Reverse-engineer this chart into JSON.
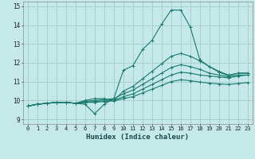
{
  "xlabel": "Humidex (Indice chaleur)",
  "background_color": "#c5e8e8",
  "grid_color": "#a8d0d0",
  "line_color": "#1a7a6e",
  "xlim": [
    -0.5,
    23.5
  ],
  "ylim": [
    8.75,
    15.25
  ],
  "xticks": [
    0,
    1,
    2,
    3,
    4,
    5,
    6,
    7,
    8,
    9,
    10,
    11,
    12,
    13,
    14,
    15,
    16,
    17,
    18,
    19,
    20,
    21,
    22,
    23
  ],
  "yticks": [
    9,
    10,
    11,
    12,
    13,
    14,
    15
  ],
  "series": [
    [
      9.7,
      9.8,
      9.85,
      9.9,
      9.9,
      9.85,
      9.8,
      9.3,
      9.8,
      10.1,
      11.6,
      11.85,
      12.7,
      13.2,
      14.05,
      14.8,
      14.8,
      13.9,
      12.15,
      11.8,
      11.5,
      11.3,
      11.45,
      11.45
    ],
    [
      9.7,
      9.8,
      9.85,
      9.9,
      9.9,
      9.85,
      10.0,
      10.1,
      10.1,
      10.0,
      10.5,
      10.75,
      11.15,
      11.55,
      11.95,
      12.35,
      12.5,
      12.35,
      12.1,
      11.8,
      11.55,
      11.35,
      11.45,
      11.45
    ],
    [
      9.7,
      9.8,
      9.85,
      9.9,
      9.9,
      9.85,
      9.95,
      10.0,
      10.05,
      10.1,
      10.35,
      10.55,
      10.85,
      11.15,
      11.45,
      11.75,
      11.9,
      11.8,
      11.65,
      11.45,
      11.35,
      11.25,
      11.35,
      11.35
    ],
    [
      9.7,
      9.8,
      9.85,
      9.9,
      9.9,
      9.85,
      9.9,
      9.95,
      9.98,
      10.0,
      10.2,
      10.35,
      10.6,
      10.85,
      11.1,
      11.35,
      11.5,
      11.45,
      11.35,
      11.3,
      11.25,
      11.2,
      11.3,
      11.35
    ],
    [
      9.7,
      9.8,
      9.85,
      9.9,
      9.9,
      9.85,
      9.9,
      9.9,
      9.95,
      9.98,
      10.1,
      10.2,
      10.4,
      10.6,
      10.8,
      11.0,
      11.1,
      11.05,
      10.98,
      10.92,
      10.88,
      10.85,
      10.9,
      10.95
    ]
  ]
}
